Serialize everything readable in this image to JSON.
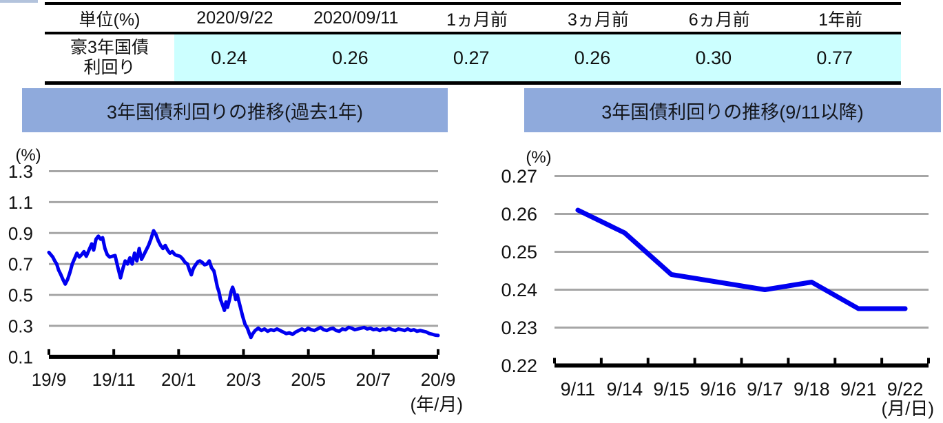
{
  "page": {
    "background": "#FFFFFF",
    "accent_bar_color": "#B3C3DC"
  },
  "table": {
    "unit_label": "単位(%)",
    "columns": [
      "2020/9/22",
      "2020/09/11",
      "1ヵ月前",
      "3ヵ月前",
      "6ヵ月前",
      "1年前"
    ],
    "row": {
      "label_line1": "豪3年国債",
      "label_line2": "利回り",
      "values": [
        "0.24",
        "0.26",
        "0.27",
        "0.26",
        "0.30",
        "0.77"
      ]
    },
    "highlight_color": "#CCFFFF"
  },
  "chart_data": [
    {
      "type": "line",
      "title": "3年国債利回りの推移(過去1年)",
      "title_band_color": "#8FAADC",
      "ylabel": "(%)",
      "xlabel": "(年/月)",
      "ylim": [
        0.1,
        1.3
      ],
      "y_ticks": [
        1.3,
        1.1,
        0.9,
        0.7,
        0.5,
        0.3,
        0.1
      ],
      "y_tick_labels": [
        "1.3",
        "1.1",
        "0.9",
        "0.7",
        "0.5",
        "0.3",
        "0.1"
      ],
      "x_tick_labels": [
        "19/9",
        "19/11",
        "20/1",
        "20/3",
        "20/5",
        "20/7",
        "20/9"
      ],
      "grid": true,
      "line_color": "#0000F0",
      "series": [
        {
          "name": "豪3年国債利回り",
          "x": [
            0.0,
            0.005,
            0.01,
            0.015,
            0.02,
            0.025,
            0.03,
            0.036,
            0.042,
            0.048,
            0.054,
            0.06,
            0.066,
            0.072,
            0.078,
            0.084,
            0.09,
            0.096,
            0.103,
            0.11,
            0.115,
            0.121,
            0.127,
            0.133,
            0.138,
            0.144,
            0.15,
            0.156,
            0.163,
            0.17,
            0.177,
            0.184,
            0.19,
            0.196,
            0.202,
            0.208,
            0.214,
            0.22,
            0.226,
            0.232,
            0.238,
            0.244,
            0.25,
            0.256,
            0.262,
            0.269,
            0.275,
            0.281,
            0.287,
            0.293,
            0.299,
            0.305,
            0.311,
            0.317,
            0.324,
            0.33,
            0.337,
            0.343,
            0.35,
            0.356,
            0.362,
            0.366,
            0.371,
            0.377,
            0.383,
            0.388,
            0.394,
            0.4,
            0.406,
            0.412,
            0.418,
            0.424,
            0.428,
            0.433,
            0.437,
            0.441,
            0.447,
            0.451,
            0.455,
            0.459,
            0.464,
            0.468,
            0.472,
            0.476,
            0.48,
            0.484,
            0.488,
            0.492,
            0.498,
            0.504,
            0.51,
            0.515,
            0.519,
            0.524,
            0.53,
            0.538,
            0.546,
            0.554,
            0.562,
            0.57,
            0.578,
            0.586,
            0.594,
            0.602,
            0.61,
            0.618,
            0.626,
            0.634,
            0.642,
            0.65,
            0.658,
            0.666,
            0.674,
            0.682,
            0.69,
            0.698,
            0.706,
            0.714,
            0.722,
            0.73,
            0.738,
            0.746,
            0.754,
            0.762,
            0.77,
            0.778,
            0.786,
            0.794,
            0.802,
            0.81,
            0.818,
            0.826,
            0.834,
            0.842,
            0.85,
            0.858,
            0.866,
            0.874,
            0.882,
            0.89,
            0.898,
            0.906,
            0.914,
            0.922,
            0.93,
            0.938,
            0.946,
            0.954,
            0.962,
            0.97,
            0.978,
            0.986,
            0.993,
            1.0
          ],
          "values": [
            0.775,
            0.76,
            0.745,
            0.72,
            0.7,
            0.66,
            0.635,
            0.6,
            0.57,
            0.6,
            0.645,
            0.7,
            0.735,
            0.77,
            0.745,
            0.76,
            0.78,
            0.75,
            0.79,
            0.83,
            0.79,
            0.86,
            0.88,
            0.86,
            0.87,
            0.8,
            0.76,
            0.745,
            0.75,
            0.755,
            0.68,
            0.61,
            0.67,
            0.72,
            0.7,
            0.74,
            0.7,
            0.77,
            0.72,
            0.8,
            0.73,
            0.76,
            0.79,
            0.82,
            0.86,
            0.915,
            0.89,
            0.85,
            0.82,
            0.8,
            0.82,
            0.79,
            0.77,
            0.78,
            0.76,
            0.755,
            0.75,
            0.735,
            0.71,
            0.7,
            0.655,
            0.63,
            0.67,
            0.695,
            0.715,
            0.72,
            0.71,
            0.695,
            0.7,
            0.72,
            0.675,
            0.655,
            0.61,
            0.55,
            0.52,
            0.47,
            0.43,
            0.4,
            0.455,
            0.42,
            0.47,
            0.52,
            0.55,
            0.52,
            0.47,
            0.5,
            0.46,
            0.42,
            0.36,
            0.31,
            0.285,
            0.25,
            0.225,
            0.25,
            0.27,
            0.285,
            0.27,
            0.28,
            0.265,
            0.275,
            0.27,
            0.28,
            0.27,
            0.26,
            0.25,
            0.255,
            0.245,
            0.26,
            0.27,
            0.28,
            0.27,
            0.285,
            0.275,
            0.27,
            0.28,
            0.29,
            0.275,
            0.27,
            0.28,
            0.285,
            0.27,
            0.265,
            0.28,
            0.275,
            0.29,
            0.285,
            0.275,
            0.28,
            0.285,
            0.29,
            0.28,
            0.285,
            0.275,
            0.28,
            0.27,
            0.28,
            0.275,
            0.285,
            0.275,
            0.27,
            0.28,
            0.275,
            0.27,
            0.28,
            0.27,
            0.275,
            0.265,
            0.27,
            0.265,
            0.26,
            0.25,
            0.245,
            0.24,
            0.238
          ]
        }
      ]
    },
    {
      "type": "line",
      "title": "3年国債利回りの推移(9/11以降)",
      "title_band_color": "#8FAADC",
      "ylabel": "(%)",
      "xlabel": "(月/日)",
      "ylim": [
        0.22,
        0.27
      ],
      "y_ticks": [
        0.27,
        0.26,
        0.25,
        0.24,
        0.23,
        0.22
      ],
      "y_tick_labels": [
        "0.27",
        "0.26",
        "0.25",
        "0.24",
        "0.23",
        "0.22"
      ],
      "categories": [
        "9/11",
        "9/14",
        "9/15",
        "9/16",
        "9/17",
        "9/18",
        "9/21",
        "9/22"
      ],
      "grid": true,
      "line_color": "#0000F0",
      "values": [
        0.261,
        0.255,
        0.244,
        0.242,
        0.24,
        0.242,
        0.235,
        0.235
      ]
    }
  ]
}
